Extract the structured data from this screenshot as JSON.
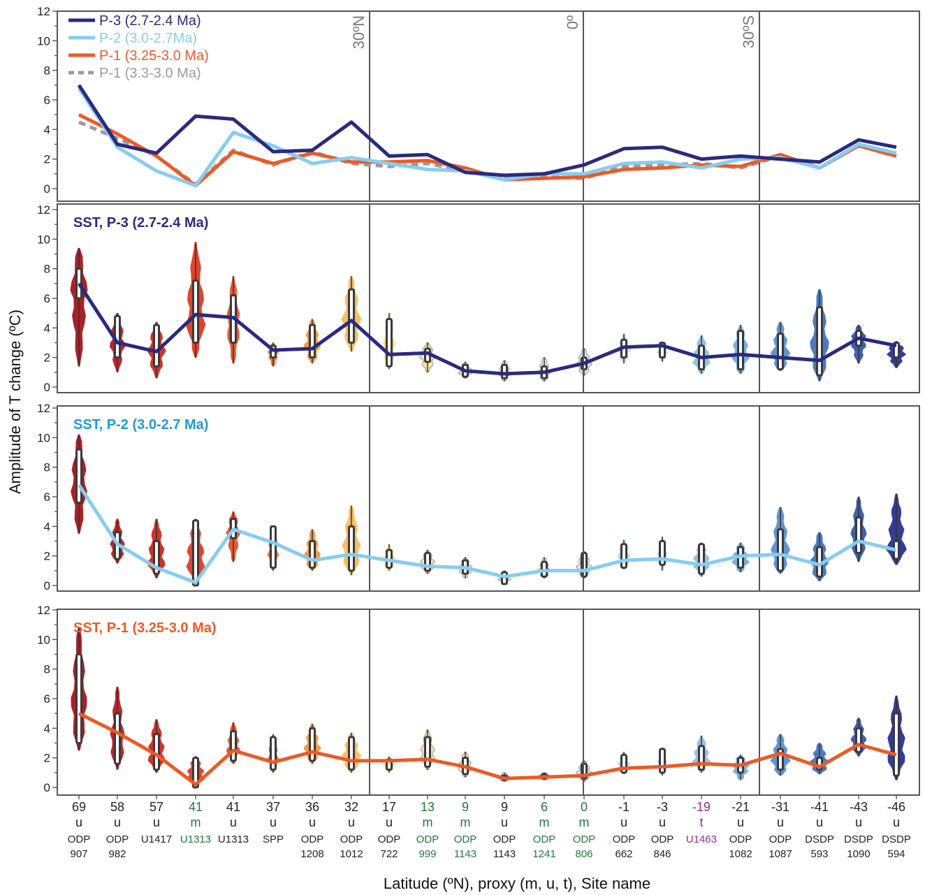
{
  "chart_data": {
    "type": "line",
    "ylabel": "Amplitude of T change (ºC)",
    "xlabel": "Latitude (ºN), proxy (m, u, t), Site name",
    "ylim": [
      0,
      12
    ],
    "yticks": [
      0,
      2,
      4,
      6,
      8,
      10,
      12
    ],
    "latitude_lines": [
      {
        "label": "30ºN",
        "after_index": 7
      },
      {
        "label": "0º",
        "after_index": 13
      },
      {
        "label": "30ºS",
        "after_index": 17
      }
    ],
    "sites": [
      {
        "lat": "69",
        "proxy": "u",
        "name1": "ODP",
        "name2": "907",
        "color": "#222222"
      },
      {
        "lat": "58",
        "proxy": "u",
        "name1": "ODP",
        "name2": "982",
        "color": "#222222"
      },
      {
        "lat": "57",
        "proxy": "u",
        "name1": "U1417",
        "name2": "",
        "color": "#222222"
      },
      {
        "lat": "41",
        "proxy": "m",
        "name1": "U1313",
        "name2": "",
        "color": "#1f7a3a"
      },
      {
        "lat": "41",
        "proxy": "u",
        "name1": "U1313",
        "name2": "",
        "color": "#222222"
      },
      {
        "lat": "37",
        "proxy": "u",
        "name1": "SPP",
        "name2": "",
        "color": "#222222"
      },
      {
        "lat": "36",
        "proxy": "u",
        "name1": "ODP",
        "name2": "1208",
        "color": "#222222"
      },
      {
        "lat": "32",
        "proxy": "u",
        "name1": "ODP",
        "name2": "1012",
        "color": "#222222"
      },
      {
        "lat": "17",
        "proxy": "u",
        "name1": "ODP",
        "name2": "722",
        "color": "#222222"
      },
      {
        "lat": "13",
        "proxy": "m",
        "name1": "ODP",
        "name2": "999",
        "color": "#1f7a3a"
      },
      {
        "lat": "9",
        "proxy": "m",
        "name1": "ODP",
        "name2": "1143",
        "color": "#1f7a3a"
      },
      {
        "lat": "9",
        "proxy": "u",
        "name1": "ODP",
        "name2": "1143",
        "color": "#222222"
      },
      {
        "lat": "6",
        "proxy": "m",
        "name1": "ODP",
        "name2": "1241",
        "color": "#1f7a3a"
      },
      {
        "lat": "0",
        "proxy": "m",
        "name1": "ODP",
        "name2": "806",
        "color": "#1f7a3a"
      },
      {
        "lat": "-1",
        "proxy": "u",
        "name1": "ODP",
        "name2": "662",
        "color": "#222222"
      },
      {
        "lat": "-3",
        "proxy": "u",
        "name1": "ODP",
        "name2": "846",
        "color": "#222222"
      },
      {
        "lat": "-19",
        "proxy": "t",
        "name1": "U1463",
        "name2": "",
        "color": "#9b2a8a"
      },
      {
        "lat": "-21",
        "proxy": "u",
        "name1": "ODP",
        "name2": "1082",
        "color": "#222222"
      },
      {
        "lat": "-31",
        "proxy": "u",
        "name1": "ODP",
        "name2": "1087",
        "color": "#222222"
      },
      {
        "lat": "-41",
        "proxy": "u",
        "name1": "DSDP",
        "name2": "593",
        "color": "#222222"
      },
      {
        "lat": "-43",
        "proxy": "u",
        "name1": "DSDP",
        "name2": "1090",
        "color": "#222222"
      },
      {
        "lat": "-46",
        "proxy": "u",
        "name1": "DSDP",
        "name2": "594",
        "color": "#222222"
      }
    ],
    "site_colors": [
      "#a5161d",
      "#b81c20",
      "#cc2a1f",
      "#de3b22",
      "#e5522a",
      "#ec6f33",
      "#f2953f",
      "#f8bb5c",
      "#fcd97f",
      "#fce7a0",
      "#f6eec2",
      "#eceee8",
      "#e4edf3",
      "#d6e9f6",
      "#bcdcf0",
      "#a8d0ec",
      "#8fbfe3",
      "#75aad8",
      "#5a90cc",
      "#4574bb",
      "#3558a8",
      "#29338f"
    ],
    "panels": [
      {
        "kind": "lines",
        "series": [
          {
            "name": "P-3 (2.7-2.4 Ma)",
            "color": "#2a2a7e",
            "dash": false,
            "values": [
              7.0,
              3.0,
              2.4,
              4.9,
              4.7,
              2.5,
              2.6,
              4.5,
              2.2,
              2.3,
              1.1,
              0.9,
              1.0,
              1.6,
              2.7,
              2.8,
              2.0,
              2.2,
              2.0,
              1.8,
              3.3,
              2.8
            ]
          },
          {
            "name": "P-2 (3.0-2.7Ma)",
            "color": "#86cdf0",
            "dash": false,
            "values": [
              6.8,
              2.8,
              1.2,
              0.2,
              3.8,
              2.9,
              1.7,
              2.1,
              1.7,
              1.3,
              1.2,
              0.6,
              1.0,
              1.0,
              1.7,
              1.8,
              1.4,
              2.0,
              2.1,
              1.4,
              3.0,
              2.4
            ]
          },
          {
            "name": "P-1 (3.25-3.0 Ma)",
            "color": "#ec5a26",
            "dash": false,
            "values": [
              5.0,
              3.7,
              2.2,
              0.2,
              2.5,
              1.7,
              2.4,
              1.8,
              1.8,
              1.9,
              1.4,
              0.6,
              0.7,
              0.8,
              1.3,
              1.4,
              1.6,
              1.5,
              2.3,
              1.4,
              2.9,
              2.2
            ]
          },
          {
            "name": "P-1 (3.3-3.0 Ma)",
            "color": "#9b9b9b",
            "dash": true,
            "values": [
              4.5,
              3.4,
              2.2,
              0.3,
              2.6,
              1.6,
              2.5,
              1.7,
              1.5,
              1.7,
              1.2,
              0.7,
              0.8,
              0.7,
              1.5,
              1.6,
              1.7,
              1.4,
              2.2,
              1.4,
              3.0,
              2.2
            ]
          }
        ],
        "legend_position": "top-left"
      },
      {
        "kind": "violins",
        "title": "SST, P-3 (2.7-2.4 Ma)",
        "title_color": "#2a2a7e",
        "line_color": "#2a2a7e",
        "median": [
          7.0,
          3.0,
          2.4,
          4.9,
          4.7,
          2.5,
          2.6,
          4.5,
          2.2,
          2.3,
          1.1,
          0.9,
          1.0,
          1.6,
          2.7,
          2.8,
          2.0,
          2.2,
          2.0,
          1.8,
          3.3,
          2.8
        ],
        "min": [
          1.4,
          1.0,
          0.6,
          2.0,
          1.6,
          1.4,
          1.6,
          2.4,
          1.2,
          1.0,
          0.6,
          0.4,
          0.4,
          0.8,
          1.6,
          1.7,
          0.9,
          0.9,
          1.1,
          0.4,
          1.6,
          1.3
        ],
        "max": [
          9.4,
          5.0,
          4.4,
          9.8,
          7.5,
          3.0,
          4.6,
          7.5,
          5.0,
          3.0,
          1.7,
          1.8,
          2.0,
          2.6,
          3.6,
          3.0,
          3.5,
          4.2,
          4.4,
          6.6,
          4.2,
          3.1
        ],
        "q1": [
          6.0,
          2.0,
          1.4,
          3.0,
          3.0,
          2.0,
          2.0,
          3.0,
          1.4,
          1.7,
          0.7,
          0.6,
          0.6,
          1.2,
          2.0,
          2.0,
          1.2,
          1.2,
          1.2,
          0.8,
          2.8,
          2.0
        ],
        "q3": [
          8.0,
          4.8,
          4.2,
          7.2,
          6.2,
          2.8,
          4.2,
          6.6,
          4.6,
          2.6,
          1.5,
          1.5,
          1.4,
          2.0,
          3.2,
          3.0,
          2.8,
          3.8,
          3.6,
          5.4,
          3.8,
          3.0
        ]
      },
      {
        "kind": "violins",
        "title": "SST, P-2 (3.0-2.7 Ma)",
        "title_color": "#1e9ad6",
        "line_color": "#86cdf0",
        "median": [
          6.8,
          2.8,
          1.2,
          0.2,
          3.8,
          2.9,
          1.7,
          2.1,
          1.7,
          1.3,
          1.2,
          0.6,
          1.0,
          1.0,
          1.7,
          1.8,
          1.4,
          2.0,
          2.1,
          1.4,
          3.0,
          2.4
        ],
        "min": [
          3.5,
          1.5,
          0.5,
          0.0,
          1.6,
          1.0,
          1.0,
          0.7,
          1.0,
          0.8,
          0.5,
          0.1,
          0.5,
          0.5,
          1.1,
          1.0,
          0.6,
          0.9,
          0.8,
          0.3,
          1.6,
          1.4
        ],
        "max": [
          10.2,
          4.5,
          4.5,
          4.5,
          5.0,
          4.0,
          3.8,
          5.4,
          2.8,
          2.4,
          1.9,
          1.0,
          1.9,
          2.3,
          3.1,
          3.3,
          2.9,
          2.9,
          5.3,
          3.6,
          6.0,
          6.2
        ],
        "q1": [
          5.6,
          1.8,
          0.8,
          0.0,
          3.2,
          1.2,
          1.2,
          1.0,
          1.2,
          1.0,
          0.8,
          0.1,
          0.6,
          0.6,
          1.2,
          1.4,
          0.8,
          1.2,
          1.0,
          0.6,
          2.2,
          1.8
        ],
        "q3": [
          9.2,
          3.6,
          3.0,
          4.4,
          4.5,
          4.0,
          3.0,
          4.0,
          2.4,
          2.2,
          1.7,
          0.9,
          1.6,
          2.2,
          2.8,
          3.0,
          2.8,
          2.6,
          3.8,
          2.6,
          4.6,
          3.0
        ]
      },
      {
        "kind": "violins",
        "title": "SST, P-1 (3.25-3.0 Ma)",
        "title_color": "#ec5a26",
        "line_color": "#ec5a26",
        "median": [
          5.0,
          3.7,
          2.2,
          0.2,
          2.5,
          1.7,
          2.4,
          1.8,
          1.8,
          1.9,
          1.4,
          0.6,
          0.7,
          0.8,
          1.3,
          1.4,
          1.6,
          1.5,
          2.3,
          1.4,
          2.9,
          2.2
        ],
        "min": [
          2.5,
          1.2,
          1.0,
          0.0,
          1.6,
          1.0,
          1.6,
          1.0,
          1.0,
          1.2,
          0.7,
          0.4,
          0.5,
          0.4,
          0.9,
          0.8,
          1.0,
          0.5,
          0.8,
          0.9,
          2.1,
          0.5
        ],
        "max": [
          10.8,
          6.8,
          4.6,
          2.1,
          4.4,
          3.6,
          4.3,
          3.7,
          2.1,
          3.9,
          2.4,
          1.0,
          1.0,
          1.8,
          2.4,
          2.7,
          3.5,
          2.2,
          3.6,
          3.0,
          4.7,
          6.2
        ],
        "q1": [
          3.0,
          1.6,
          1.2,
          0.0,
          1.8,
          1.2,
          1.8,
          1.2,
          1.2,
          1.4,
          0.9,
          0.5,
          0.6,
          0.6,
          1.0,
          1.0,
          1.2,
          1.0,
          1.2,
          1.2,
          2.4,
          0.8
        ],
        "q3": [
          9.0,
          5.0,
          3.6,
          2.0,
          3.8,
          3.4,
          4.0,
          3.4,
          1.9,
          3.4,
          2.0,
          0.8,
          0.9,
          1.6,
          2.2,
          2.6,
          2.8,
          2.0,
          2.6,
          2.0,
          4.0,
          5.0
        ]
      }
    ]
  }
}
